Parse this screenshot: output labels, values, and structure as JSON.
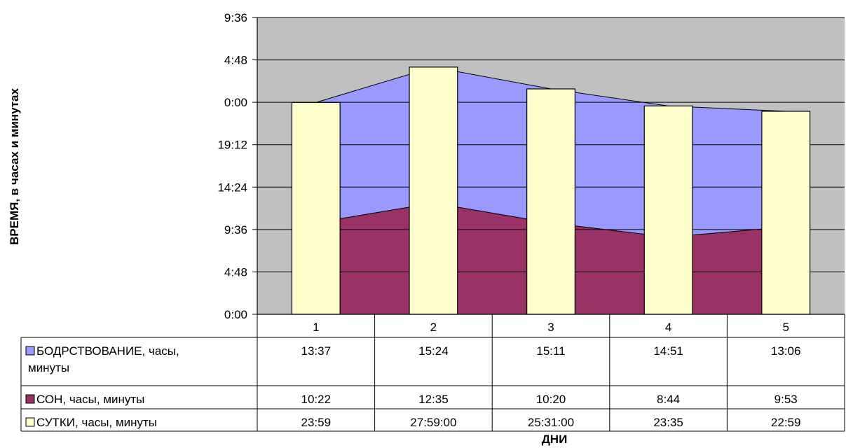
{
  "chart_data": {
    "type": "area",
    "ylabel": "ВРЕМЯ, в часах и минутах",
    "xlabel": "ДНИ",
    "categories": [
      "1",
      "2",
      "3",
      "4",
      "5"
    ],
    "y_unit": "minutes",
    "ylim": [
      0,
      2016
    ],
    "yticks": [
      0,
      288,
      576,
      864,
      1152,
      1440,
      1728,
      2016
    ],
    "ytick_labels": [
      "0:00",
      "4:48",
      "9:36",
      "14:24",
      "19:12",
      "0:00",
      "4:48",
      "9:36"
    ],
    "grid": true,
    "data_table": true,
    "stacked_area": true,
    "series": [
      {
        "name": "СОН, часы, минуты",
        "kind": "area",
        "color": "#993366",
        "values": [
          622,
          755,
          620,
          524,
          593
        ],
        "labels": [
          "10:22",
          "12:35",
          "10:20",
          "8:44",
          "9:53"
        ]
      },
      {
        "name": "БОДРСТВОВАНИЕ, часы, минуты",
        "kind": "area",
        "color": "#9999FF",
        "values": [
          817,
          924,
          911,
          891,
          786
        ],
        "labels": [
          "13:37",
          "15:24",
          "15:11",
          "14:51",
          "13:06"
        ]
      },
      {
        "name": "СУТКИ, часы, минуты",
        "kind": "bar",
        "color": "#FFFFCC",
        "values": [
          1439,
          1679,
          1531,
          1415,
          1379
        ],
        "labels": [
          "23:59",
          "27:59:00",
          "25:31:00",
          "23:35",
          "22:59"
        ]
      }
    ],
    "table_order": [
      1,
      0,
      2
    ],
    "plot_background": "#C0C0C0"
  }
}
